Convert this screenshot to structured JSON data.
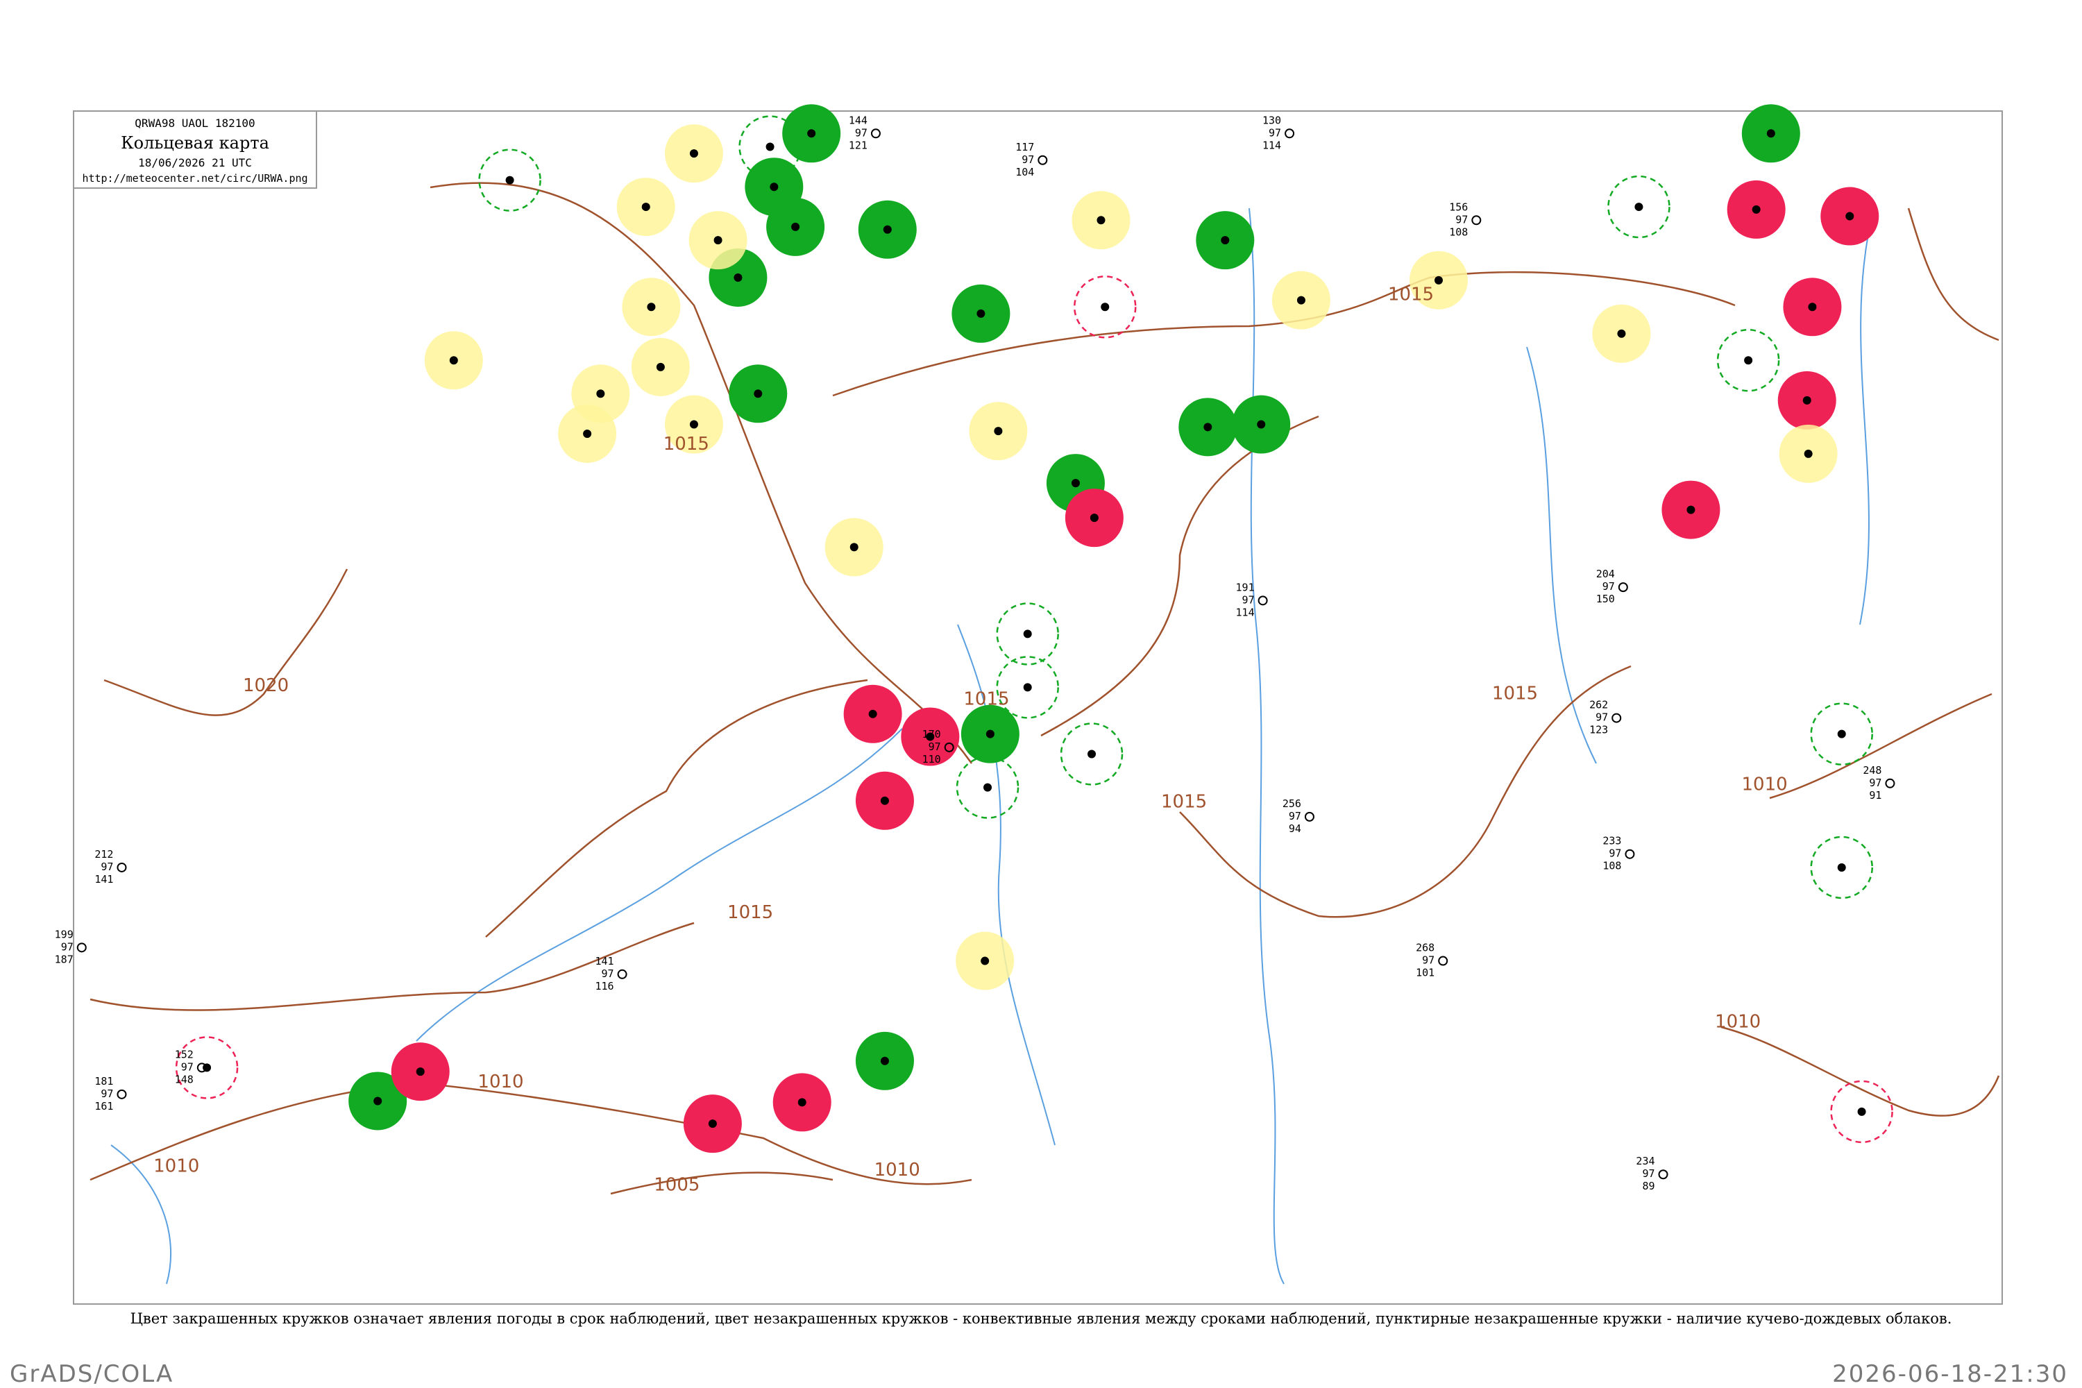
{
  "header": {
    "code": "QRWA98 UAOL 182100",
    "title": "Кольцевая карта",
    "date": "18/06/2026 21 UTC",
    "url": "http://meteocenter.net/circ/URWA.png"
  },
  "isobar_labels": [
    "1015",
    "1015",
    "1015",
    "1015",
    "1015",
    "1015",
    "1020",
    "1010",
    "1010",
    "1010",
    "1005",
    "1010",
    "1010"
  ],
  "stations": [
    {
      "top": "144",
      "mid": "97",
      "bot": "121"
    },
    {
      "top": "117",
      "mid": "97",
      "bot": "104"
    },
    {
      "top": "130",
      "mid": "97",
      "bot": "114"
    },
    {
      "top": "156",
      "mid": "97",
      "bot": "108"
    },
    {
      "top": "141",
      "mid": "97",
      "bot": "116"
    },
    {
      "top": "170",
      "mid": "97",
      "bot": "110"
    },
    {
      "top": "212",
      "mid": "97",
      "bot": "141"
    },
    {
      "top": "204",
      "mid": "97",
      "bot": "150"
    },
    {
      "top": "191",
      "mid": "97",
      "bot": "114"
    },
    {
      "top": "256",
      "mid": "97",
      "bot": "94"
    },
    {
      "top": "262",
      "mid": "97",
      "bot": "123"
    },
    {
      "top": "268",
      "mid": "97",
      "bot": "101"
    },
    {
      "top": "233",
      "mid": "97",
      "bot": "108"
    },
    {
      "top": "248",
      "mid": "97",
      "bot": "91"
    },
    {
      "top": "199",
      "mid": "97",
      "bot": "187"
    },
    {
      "top": "152",
      "mid": "97",
      "bot": "148"
    },
    {
      "top": "181",
      "mid": "97",
      "bot": "161"
    },
    {
      "top": "234",
      "mid": "97",
      "bot": "89"
    }
  ],
  "caption": "Цвет закрашенных кружков означает явления погоды в срок наблюдений, цвет незакрашенных кружков - конвективные явления между сроками наблюдений, пунктирные незакрашенные кружки - наличие кучево-дождевых облаков.",
  "footer": {
    "left": "GrADS/COLA",
    "right": "2026-06-18-21:30"
  }
}
